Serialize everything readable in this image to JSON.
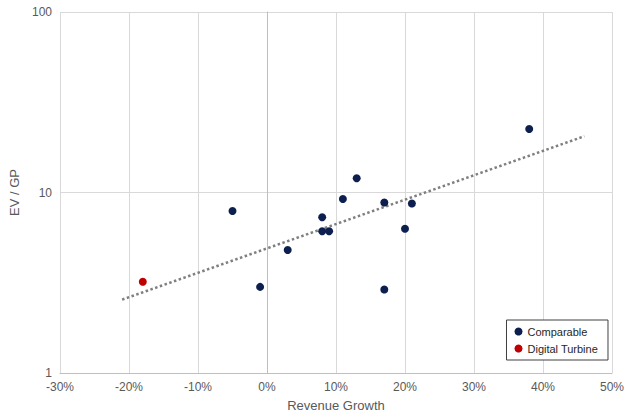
{
  "chart_data": {
    "type": "scatter",
    "xlabel": "Revenue Growth",
    "ylabel": "EV / GP",
    "log": "y",
    "grid": true,
    "legend": "bottom-right",
    "xlim": [
      -30,
      50
    ],
    "xticks": [
      {
        "value": -30,
        "label": "-30%"
      },
      {
        "value": -20,
        "label": "-20%"
      },
      {
        "value": -10,
        "label": "-10%"
      },
      {
        "value": 0,
        "label": "0%"
      },
      {
        "value": 10,
        "label": "10%"
      },
      {
        "value": 20,
        "label": "20%"
      },
      {
        "value": 30,
        "label": "30%"
      },
      {
        "value": 40,
        "label": "40%"
      },
      {
        "value": 50,
        "label": "50%"
      }
    ],
    "ylim": [
      1,
      100
    ],
    "yticks": [
      1,
      10,
      100
    ],
    "series": [
      {
        "name": "Comparable",
        "color": "#0d1f4f",
        "marker": "circle",
        "x": [
          -5,
          -1,
          3,
          8,
          8,
          9,
          11,
          13,
          17,
          17,
          20,
          21,
          38
        ],
        "values": [
          7.9,
          3.0,
          4.8,
          7.3,
          6.1,
          6.1,
          9.2,
          12.0,
          8.8,
          2.9,
          6.3,
          8.7,
          22.5
        ]
      },
      {
        "name": "Digital Turbine",
        "color": "#c00000",
        "marker": "circle",
        "x": [
          -18
        ],
        "values": [
          3.2
        ]
      },
      {
        "type": "line",
        "color": "#7f7f7f",
        "line_style": "dotted",
        "x": [
          -21,
          46
        ],
        "values": [
          2.55,
          20.5
        ]
      }
    ]
  }
}
